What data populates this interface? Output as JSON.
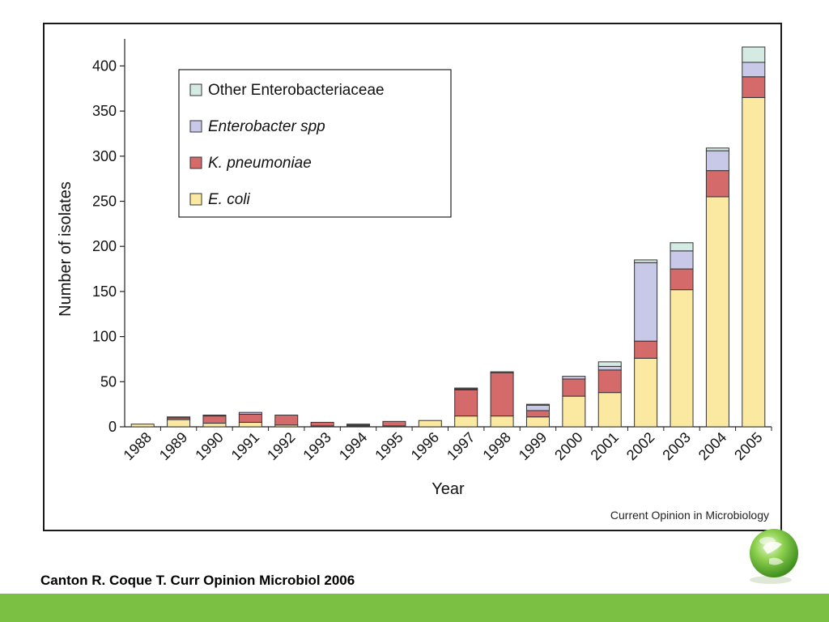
{
  "chart_data": {
    "type": "bar",
    "stacked": true,
    "categories": [
      "1988",
      "1989",
      "1990",
      "1991",
      "1992",
      "1993",
      "1994",
      "1995",
      "1996",
      "1997",
      "1998",
      "1999",
      "2000",
      "2001",
      "2002",
      "2003",
      "2004",
      "2005"
    ],
    "series": [
      {
        "name": "E. coli",
        "color": "#fbe9a1",
        "values": [
          3,
          8,
          4,
          5,
          2,
          1,
          1,
          1,
          7,
          12,
          12,
          11,
          34,
          38,
          76,
          152,
          255,
          365
        ]
      },
      {
        "name": "K. pneumoniae",
        "color": "#d46a6a",
        "values": [
          0,
          2,
          8,
          9,
          11,
          4,
          1,
          5,
          0,
          29,
          48,
          7,
          19,
          25,
          19,
          23,
          29,
          23
        ]
      },
      {
        "name": "Enterobacter spp",
        "color": "#c8c8e8",
        "values": [
          0,
          1,
          1,
          2,
          0,
          0,
          0,
          0,
          0,
          1,
          1,
          6,
          3,
          4,
          87,
          20,
          22,
          16
        ]
      },
      {
        "name": "Other Enterobacteriaceae",
        "color": "#d3ebe3",
        "values": [
          0,
          0,
          0,
          0,
          0,
          0,
          1,
          0,
          0,
          1,
          0,
          1,
          0,
          5,
          3,
          9,
          3,
          17
        ]
      }
    ],
    "legend_order": [
      "Other Enterobacteriaceae",
      "Enterobacter spp",
      "K. pneumoniae",
      "E. coli"
    ],
    "legend_placement": "top-left",
    "xlabel": "Year",
    "ylabel": "Number of isolates",
    "ylim": [
      0,
      430
    ],
    "yticks": [
      0,
      50,
      100,
      150,
      200,
      250,
      300,
      350,
      400
    ],
    "grid": false,
    "source_note": "Current Opinion in Microbiology"
  },
  "citation": "Canton R. Coque T. Curr Opinion Microbiol 2006",
  "colors": {
    "footer_bar": "#7bc043",
    "frame": "#1a1a1a"
  },
  "icons": {
    "logo": "green-orb-logo"
  }
}
